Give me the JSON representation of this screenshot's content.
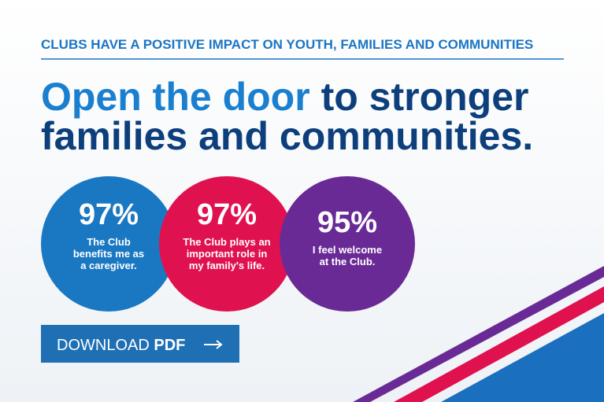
{
  "header": {
    "kicker": "CLUBS HAVE A POSITIVE IMPACT ON YOUTH, FAMILIES AND COMMUNITIES",
    "headline": {
      "highlight": "Open the door",
      "rest_line1": "to stronger",
      "line2": "families and communities."
    }
  },
  "stats": [
    {
      "value": "97%",
      "caption": [
        "The Club",
        "benefits me as",
        "a caregiver."
      ]
    },
    {
      "value": "97%",
      "caption": [
        "The Club plays an",
        "important role in",
        "my family's life."
      ]
    },
    {
      "value": "95%",
      "caption": [
        "I feel welcome",
        "at the Club."
      ]
    }
  ],
  "button": {
    "label": "DOWNLOAD",
    "emphasis": "PDF"
  }
}
